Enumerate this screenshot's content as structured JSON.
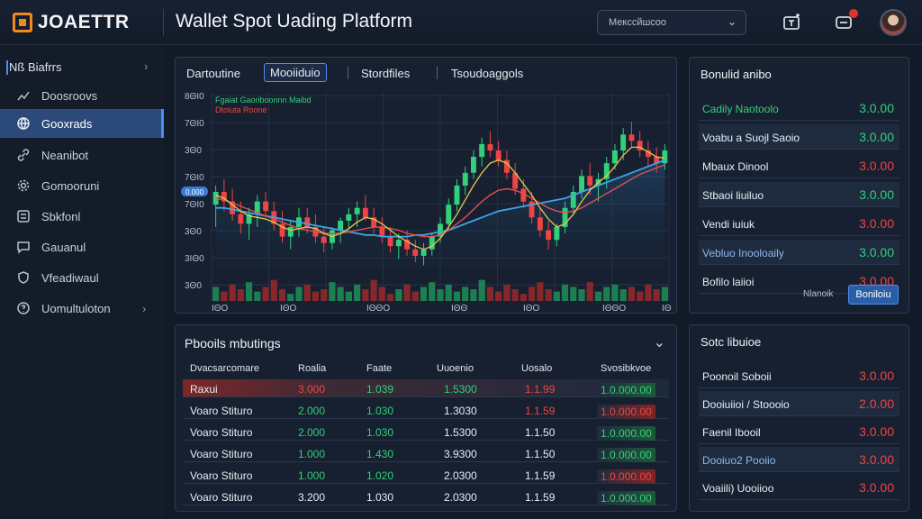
{
  "header": {
    "logo_text": "JOAETTR",
    "app_title": "Wallet Spot Uading Platform",
    "network_select": "Мексcйшcоо"
  },
  "sidebar": {
    "heading": "Nß Biafrrs",
    "items": [
      {
        "label": "Doosroovs",
        "icon": "grid-icon"
      },
      {
        "label": "Gooxrads",
        "icon": "globe-icon"
      },
      {
        "label": "Neanibot",
        "icon": "link-icon"
      },
      {
        "label": "Gomooruni",
        "icon": "gear-icon"
      },
      {
        "label": "Sbkfonl",
        "icon": "settings-box-icon"
      },
      {
        "label": "Gauanul",
        "icon": "chat-icon"
      },
      {
        "label": "Vfeadiwaul",
        "icon": "shield-icon"
      },
      {
        "label": "Uomultuloton",
        "icon": "help-icon"
      }
    ]
  },
  "chart_panel": {
    "tabs": [
      "Dartoutine",
      "Mooiiduio",
      "Stordfiles",
      "Tsoudoaggols"
    ],
    "active_tab": 1,
    "legend_line1": "Fgaiat  Gaoriboonnn  Maibd",
    "legend_line2": "Dtoiuta  Roone",
    "price_marker": "0.000"
  },
  "chart_data": {
    "type": "line",
    "y_tick_labels": [
      "8ΘΙ0",
      "7ΘΙ0",
      "3Θ0",
      "7ΘΙ0",
      "7ΘΙ0",
      "3Θ0",
      "3ΙΘ0",
      "3Θ0"
    ],
    "x_tick_labels": [
      "IΘO",
      "IΘO",
      "IΘΘO",
      "IΘΘ",
      "IΘO",
      "IΘΘO",
      "IΘ"
    ],
    "candles": [
      {
        "o": 24,
        "h": 36,
        "l": 10,
        "c": 32
      },
      {
        "o": 32,
        "h": 40,
        "l": 20,
        "c": 26
      },
      {
        "o": 26,
        "h": 34,
        "l": 14,
        "c": 18
      },
      {
        "o": 18,
        "h": 26,
        "l": 6,
        "c": 12
      },
      {
        "o": 12,
        "h": 22,
        "l": 2,
        "c": 18
      },
      {
        "o": 18,
        "h": 30,
        "l": 10,
        "c": 26
      },
      {
        "o": 26,
        "h": 32,
        "l": 16,
        "c": 20
      },
      {
        "o": 20,
        "h": 26,
        "l": 8,
        "c": 12
      },
      {
        "o": 12,
        "h": 20,
        "l": 0,
        "c": 4
      },
      {
        "o": 4,
        "h": 14,
        "l": -4,
        "c": 10
      },
      {
        "o": 10,
        "h": 22,
        "l": 4,
        "c": 16
      },
      {
        "o": 16,
        "h": 22,
        "l": 6,
        "c": 10
      },
      {
        "o": 10,
        "h": 18,
        "l": 0,
        "c": 4
      },
      {
        "o": 4,
        "h": 10,
        "l": -6,
        "c": 0
      },
      {
        "o": 0,
        "h": 10,
        "l": -4,
        "c": 8
      },
      {
        "o": 8,
        "h": 16,
        "l": 0,
        "c": 14
      },
      {
        "o": 14,
        "h": 22,
        "l": 8,
        "c": 18
      },
      {
        "o": 18,
        "h": 26,
        "l": 10,
        "c": 22
      },
      {
        "o": 22,
        "h": 30,
        "l": 14,
        "c": 16
      },
      {
        "o": 16,
        "h": 22,
        "l": 6,
        "c": 10
      },
      {
        "o": 10,
        "h": 16,
        "l": 0,
        "c": 4
      },
      {
        "o": 4,
        "h": 10,
        "l": -6,
        "c": -2
      },
      {
        "o": -2,
        "h": 6,
        "l": -10,
        "c": 2
      },
      {
        "o": 2,
        "h": 8,
        "l": -8,
        "c": -4
      },
      {
        "o": -4,
        "h": 2,
        "l": -12,
        "c": -8
      },
      {
        "o": -8,
        "h": 0,
        "l": -14,
        "c": -4
      },
      {
        "o": -4,
        "h": 6,
        "l": -8,
        "c": 4
      },
      {
        "o": 4,
        "h": 16,
        "l": 0,
        "c": 12
      },
      {
        "o": 12,
        "h": 28,
        "l": 8,
        "c": 24
      },
      {
        "o": 24,
        "h": 40,
        "l": 20,
        "c": 36
      },
      {
        "o": 36,
        "h": 48,
        "l": 30,
        "c": 44
      },
      {
        "o": 44,
        "h": 58,
        "l": 40,
        "c": 54
      },
      {
        "o": 54,
        "h": 66,
        "l": 48,
        "c": 62
      },
      {
        "o": 62,
        "h": 70,
        "l": 54,
        "c": 58
      },
      {
        "o": 58,
        "h": 64,
        "l": 48,
        "c": 52
      },
      {
        "o": 52,
        "h": 58,
        "l": 40,
        "c": 44
      },
      {
        "o": 44,
        "h": 50,
        "l": 30,
        "c": 34
      },
      {
        "o": 34,
        "h": 40,
        "l": 22,
        "c": 26
      },
      {
        "o": 26,
        "h": 32,
        "l": 12,
        "c": 16
      },
      {
        "o": 16,
        "h": 22,
        "l": 4,
        "c": 8
      },
      {
        "o": 8,
        "h": 14,
        "l": -4,
        "c": 2
      },
      {
        "o": 2,
        "h": 12,
        "l": -2,
        "c": 10
      },
      {
        "o": 10,
        "h": 26,
        "l": 6,
        "c": 22
      },
      {
        "o": 22,
        "h": 36,
        "l": 18,
        "c": 32
      },
      {
        "o": 32,
        "h": 46,
        "l": 28,
        "c": 42
      },
      {
        "o": 42,
        "h": 50,
        "l": 30,
        "c": 36
      },
      {
        "o": 36,
        "h": 44,
        "l": 26,
        "c": 40
      },
      {
        "o": 40,
        "h": 54,
        "l": 34,
        "c": 50
      },
      {
        "o": 50,
        "h": 62,
        "l": 46,
        "c": 58
      },
      {
        "o": 58,
        "h": 72,
        "l": 52,
        "c": 68
      },
      {
        "o": 68,
        "h": 76,
        "l": 60,
        "c": 64
      },
      {
        "o": 64,
        "h": 70,
        "l": 54,
        "c": 58
      },
      {
        "o": 58,
        "h": 64,
        "l": 48,
        "c": 54
      },
      {
        "o": 54,
        "h": 60,
        "l": 44,
        "c": 50
      },
      {
        "o": 50,
        "h": 62,
        "l": 46,
        "c": 58
      }
    ],
    "volume": [
      0.6,
      0.4,
      0.7,
      0.5,
      0.8,
      0.4,
      0.6,
      0.9,
      0.5,
      0.3,
      0.6,
      0.7,
      0.4,
      0.5,
      0.8,
      0.6,
      0.4,
      0.7,
      0.5,
      0.9,
      0.6,
      0.3,
      0.5,
      0.7,
      0.4,
      0.6,
      0.8,
      0.5,
      0.7,
      0.4,
      0.6,
      0.5,
      0.9,
      0.6,
      0.4,
      0.7,
      0.5,
      0.3,
      0.6,
      0.8,
      0.5,
      0.4,
      0.7,
      0.6,
      0.5,
      0.8,
      0.4,
      0.6,
      0.7,
      0.5,
      0.6,
      0.4,
      0.7,
      0.5,
      0.6
    ],
    "ma_blue": [
      22,
      22,
      21,
      20,
      19,
      18,
      17,
      16,
      15,
      14,
      13,
      12,
      11,
      10,
      9,
      8,
      7,
      6,
      5,
      5,
      4,
      4,
      4,
      4,
      5,
      5,
      6,
      7,
      8,
      10,
      12,
      14,
      16,
      18,
      20,
      21,
      22,
      23,
      24,
      25,
      26,
      27,
      28,
      30,
      32,
      34,
      36,
      38,
      40,
      42,
      44,
      46,
      48,
      50,
      52
    ],
    "ma_red": [
      28,
      27,
      25,
      23,
      21,
      19,
      17,
      15,
      13,
      11,
      9,
      8,
      7,
      6,
      6,
      6,
      7,
      8,
      9,
      10,
      10,
      9,
      8,
      6,
      5,
      4,
      4,
      5,
      8,
      12,
      16,
      21,
      26,
      30,
      33,
      34,
      33,
      31,
      28,
      25,
      22,
      20,
      19,
      20,
      22,
      25,
      28,
      31,
      34,
      37,
      40,
      43,
      45,
      47,
      49
    ],
    "ma_yellow": [
      30,
      28,
      24,
      20,
      17,
      16,
      15,
      13,
      10,
      8,
      9,
      10,
      9,
      6,
      4,
      6,
      9,
      13,
      16,
      15,
      12,
      8,
      4,
      1,
      -2,
      -4,
      -2,
      3,
      10,
      18,
      27,
      36,
      44,
      50,
      52,
      50,
      44,
      37,
      30,
      22,
      15,
      10,
      12,
      18,
      26,
      33,
      38,
      42,
      48,
      55,
      60,
      60,
      57,
      54,
      53
    ],
    "price_range": [
      -16,
      80
    ]
  },
  "positions": {
    "title": "Pbooils mbutings",
    "columns": [
      "Dvacsarcomare",
      "Roalia",
      "Faate",
      "Uuoenio",
      "Uosalo",
      "Svosibkvoe"
    ],
    "rows": [
      {
        "name": "Raxui",
        "c1": "3.000",
        "c2": "1.039",
        "c3": "1.5300",
        "c4": "1.1.99",
        "c5": "1.0.000.00",
        "c1c": "red",
        "c2c": "green",
        "c3c": "green",
        "c4c": "red",
        "c5c": "green",
        "hl": true,
        "pill": "green"
      },
      {
        "name": "Voaro Stituro",
        "c1": "2.000",
        "c2": "1.030",
        "c3": "1.3030",
        "c4": "1.1.59",
        "c5": "1.0.000.00",
        "c1c": "green",
        "c2c": "green",
        "c3c": "white",
        "c4c": "red",
        "c5c": "red",
        "hl": false,
        "pill": "red"
      },
      {
        "name": "Voaro Stituro",
        "c1": "2.000",
        "c2": "1.030",
        "c3": "1.5300",
        "c4": "1.1.50",
        "c5": "1.0.000.00",
        "c1c": "green",
        "c2c": "green",
        "c3c": "white",
        "c4c": "white",
        "c5c": "green",
        "hl": false,
        "pill": "green"
      },
      {
        "name": "Voaro Stituro",
        "c1": "1.000",
        "c2": "1.430",
        "c3": "3.9300",
        "c4": "1.1.50",
        "c5": "1.0.000.00",
        "c1c": "green",
        "c2c": "green",
        "c3c": "white",
        "c4c": "white",
        "c5c": "green",
        "hl": false,
        "pill": "green"
      },
      {
        "name": "Voaro Stituro",
        "c1": "1.000",
        "c2": "1.020",
        "c3": "2.0300",
        "c4": "1.1.59",
        "c5": "1.0.000.00",
        "c1c": "green",
        "c2c": "green",
        "c3c": "white",
        "c4c": "white",
        "c5c": "red",
        "hl": false,
        "pill": "red"
      },
      {
        "name": "Voaro Stituro",
        "c1": "3.200",
        "c2": "1.030",
        "c3": "2.0300",
        "c4": "1.1.59",
        "c5": "1.0.000.00",
        "c1c": "white",
        "c2c": "white",
        "c3c": "white",
        "c4c": "white",
        "c5c": "green",
        "hl": false,
        "pill": "green"
      }
    ]
  },
  "balances": {
    "title": "Bonulid anibo",
    "rows": [
      {
        "name": "Cadily Naotoolo",
        "value": "3.0.00",
        "name_color": "green",
        "value_color": "green"
      },
      {
        "name": "Voabu a Suojl Saoio",
        "value": "3.0.00",
        "name_color": "white",
        "value_color": "green"
      },
      {
        "name": "Mbaux Dinool",
        "value": "3.0.00",
        "name_color": "white",
        "value_color": "red"
      },
      {
        "name": "Stbaoi liuiluo",
        "value": "3.0.00",
        "name_color": "white",
        "value_color": "green"
      },
      {
        "name": "Vendi iuiuk",
        "value": "3.0.00",
        "name_color": "white",
        "value_color": "red"
      },
      {
        "name": "Vebluo Inooloaily",
        "value": "3.0.00",
        "name_color": "blue",
        "value_color": "green"
      },
      {
        "name": "Bofilo laiioi",
        "value": "3.0.00",
        "name_color": "white",
        "value_color": "red"
      }
    ],
    "manage_label": "Nlanoik",
    "manage_button": "Boniloiu"
  },
  "orders": {
    "title": "Sotc libuioe",
    "rows": [
      {
        "name": "Poonoil Soboii",
        "value": "3.0.00",
        "name_color": "white",
        "value_color": "red"
      },
      {
        "name": "Dooiuiioi / Stoooio",
        "value": "2.0.00",
        "name_color": "white",
        "value_color": "red"
      },
      {
        "name": "Faenil Ibooil",
        "value": "3.0.00",
        "name_color": "white",
        "value_color": "red"
      },
      {
        "name": "Dooiuo2 Pooiio",
        "value": "3.0.00",
        "name_color": "blue",
        "value_color": "red"
      },
      {
        "name": "Voaiili) Uooiioo",
        "value": "3.0.00",
        "name_color": "white",
        "value_color": "red"
      }
    ]
  },
  "colors": {
    "background": "#121a28",
    "panel": "#172030",
    "accent": "#4d8ff0",
    "up": "#31d07a",
    "down": "#ee4444",
    "logo": "#f08a1c"
  }
}
